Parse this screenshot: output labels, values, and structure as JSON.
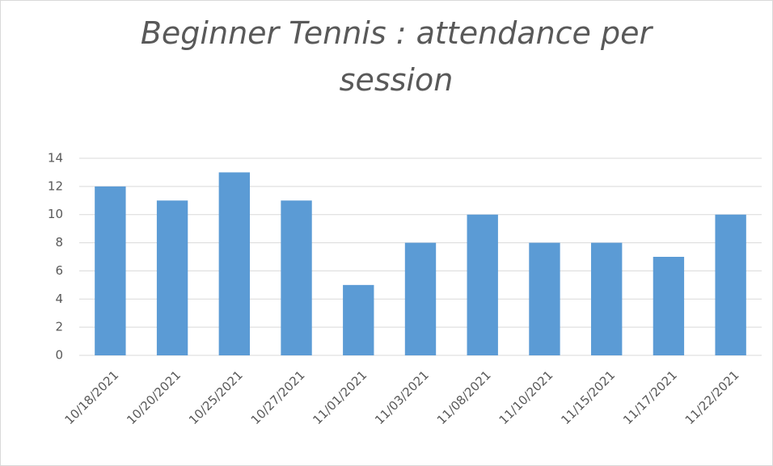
{
  "chart_data": {
    "type": "bar",
    "title": "Beginner Tennis : attendance per session",
    "categories": [
      "10/18/2021",
      "10/20/2021",
      "10/25/2021",
      "10/27/2021",
      "11/01/2021",
      "11/03/2021",
      "11/08/2021",
      "11/10/2021",
      "11/15/2021",
      "11/17/2021",
      "11/22/2021"
    ],
    "values": [
      12,
      11,
      13,
      11,
      5,
      8,
      10,
      8,
      8,
      7,
      10
    ],
    "color": "#5b9bd5",
    "ylim": [
      0,
      14
    ],
    "yticks": [
      0,
      2,
      4,
      6,
      8,
      10,
      12,
      14
    ],
    "grid": true
  }
}
